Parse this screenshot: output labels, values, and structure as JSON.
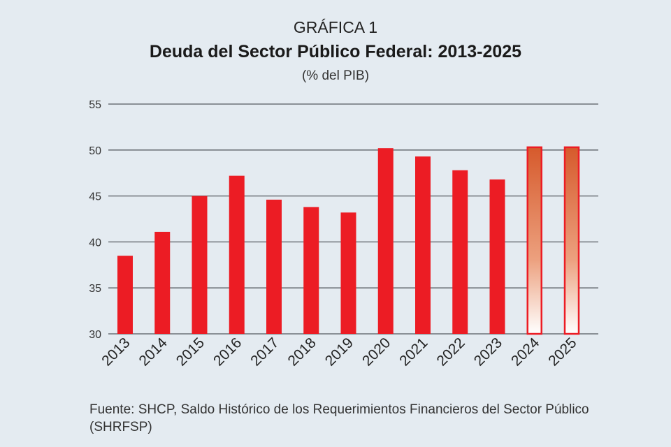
{
  "chart_data": {
    "type": "bar",
    "label": "GRÁFICA 1",
    "title": "Deuda del Sector Público Federal: 2013-2025",
    "subtitle": "(% del PIB)",
    "xlabel": "",
    "ylabel": "",
    "categories": [
      "2013",
      "2014",
      "2015",
      "2016",
      "2017",
      "2018",
      "2019",
      "2020",
      "2021",
      "2022",
      "2023",
      "2024",
      "2025"
    ],
    "values": [
      38.5,
      41.1,
      45.0,
      47.2,
      44.6,
      43.8,
      43.2,
      50.2,
      49.3,
      47.8,
      46.8,
      50.3,
      50.3
    ],
    "highlighted": [
      "2024",
      "2025"
    ],
    "ylim": [
      30,
      55
    ],
    "yticks": [
      30,
      35,
      40,
      45,
      50,
      55
    ],
    "grid": true,
    "colors": {
      "bar": "#ec1c24",
      "highlight_top": "#d65a2c",
      "highlight_bottom": "#ffffff",
      "grid": "#555a60",
      "background": "#e4ebf1"
    }
  },
  "source": "Fuente: SHCP, Saldo Histórico de los Requerimientos Financieros del Sector Público (SHRFSP)"
}
